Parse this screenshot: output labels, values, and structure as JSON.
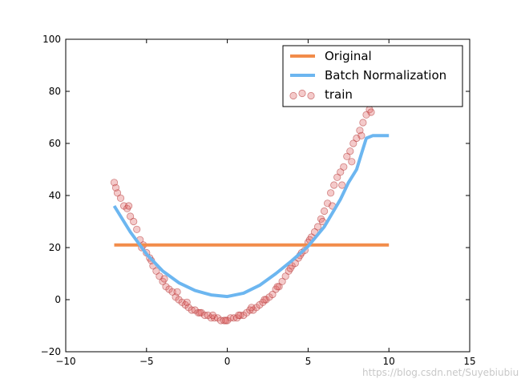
{
  "chart_data": {
    "type": "scatter",
    "xlim": [
      -10,
      15
    ],
    "ylim": [
      -20,
      100
    ],
    "x_ticks": [
      -10,
      -5,
      0,
      5,
      10,
      15
    ],
    "y_ticks": [
      -20,
      0,
      20,
      40,
      60,
      80,
      100
    ],
    "x_tick_labels": [
      "−10",
      "−5",
      "0",
      "5",
      "10",
      "15"
    ],
    "y_tick_labels": [
      "−20",
      "0",
      "20",
      "40",
      "60",
      "80",
      "100"
    ],
    "legend_position": "top-right",
    "grid": false,
    "series": [
      {
        "name": "Original",
        "kind": "line",
        "color": "#f28c4a",
        "x": [
          -7,
          10
        ],
        "y": [
          21,
          21
        ]
      },
      {
        "name": "Batch Normalization",
        "kind": "line",
        "color": "#6cb6f0",
        "x": [
          -7,
          -6,
          -5,
          -4,
          -3,
          -2,
          -1,
          0,
          1,
          2,
          3,
          4,
          5,
          6,
          7,
          7.5,
          8,
          8.3,
          8.6,
          9,
          10
        ],
        "y": [
          36,
          26,
          17.5,
          11,
          6.5,
          3.5,
          1.8,
          1.2,
          2.5,
          5.5,
          10,
          15,
          20.5,
          28,
          38.5,
          45,
          50,
          56,
          62,
          63,
          63
        ]
      },
      {
        "name": "train",
        "kind": "scatter",
        "color": "#e06666",
        "x": [
          -7.0,
          -6.8,
          -6.6,
          -6.4,
          -6.2,
          -6.0,
          -5.8,
          -5.6,
          -5.4,
          -5.2,
          -5.0,
          -4.8,
          -4.6,
          -4.4,
          -4.2,
          -4.0,
          -3.8,
          -3.6,
          -3.4,
          -3.2,
          -3.0,
          -2.8,
          -2.6,
          -2.4,
          -2.2,
          -2.0,
          -1.8,
          -1.6,
          -1.4,
          -1.2,
          -1.0,
          -0.8,
          -0.6,
          -0.4,
          -0.2,
          0.0,
          0.2,
          0.4,
          0.6,
          0.8,
          1.0,
          1.2,
          1.4,
          1.6,
          1.8,
          2.0,
          2.2,
          2.4,
          2.6,
          2.8,
          3.0,
          3.2,
          3.4,
          3.6,
          3.8,
          4.0,
          4.2,
          4.4,
          4.6,
          4.8,
          5.0,
          5.2,
          5.4,
          5.6,
          5.8,
          6.0,
          6.2,
          6.4,
          6.6,
          6.8,
          7.0,
          7.2,
          7.4,
          7.6,
          7.8,
          8.0,
          8.2,
          8.4,
          8.6,
          8.8,
          9.0,
          9.2,
          -6.9,
          -6.1,
          -5.3,
          -4.7,
          -3.9,
          -3.1,
          -2.5,
          -1.7,
          -0.9,
          -0.1,
          0.7,
          1.5,
          2.3,
          3.1,
          3.9,
          4.5,
          5.1,
          5.9,
          6.5,
          7.1,
          7.7,
          8.3,
          8.9
        ],
        "y": [
          45,
          41,
          39,
          36,
          35,
          32,
          30,
          27,
          23,
          21,
          18,
          16,
          13,
          11,
          9,
          7,
          5,
          4,
          3,
          1,
          0,
          -1,
          -2,
          -3,
          -4,
          -4,
          -5,
          -5,
          -6,
          -6,
          -7,
          -7,
          -7,
          -8,
          -8,
          -8,
          -7,
          -7,
          -7,
          -6,
          -6,
          -5,
          -4,
          -4,
          -3,
          -2,
          -1,
          0,
          1,
          2,
          4,
          5,
          7,
          9,
          11,
          13,
          14,
          16,
          18,
          19,
          22,
          24,
          26,
          28,
          31,
          34,
          37,
          41,
          44,
          47,
          49,
          51,
          55,
          57,
          60,
          62,
          65,
          68,
          71,
          73,
          76,
          78,
          43,
          36,
          20,
          15,
          8,
          3,
          -1,
          -5,
          -6,
          -8,
          -6,
          -3,
          0,
          5,
          12,
          17,
          23,
          30,
          36,
          44,
          53,
          63,
          72
        ]
      }
    ]
  },
  "watermark": "https://blog.csdn.net/Suyebiubiu"
}
